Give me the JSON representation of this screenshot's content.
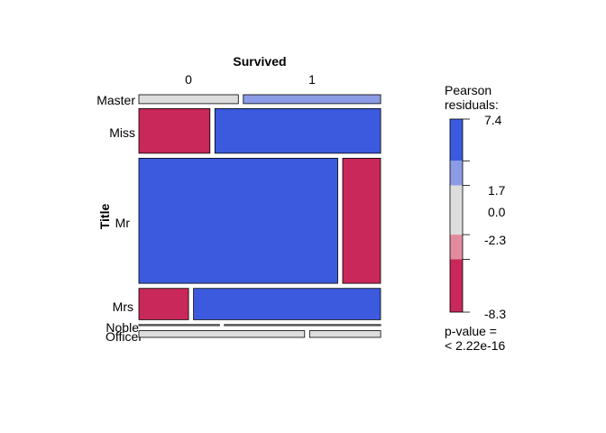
{
  "chart_data": {
    "type": "mosaic",
    "xlabel": "Survived",
    "ylabel": "Title",
    "x_categories": [
      "0",
      "1"
    ],
    "y_categories": [
      "Master",
      "Miss",
      "Mr",
      "Mrs",
      "Noble",
      "Officer"
    ],
    "cells": [
      {
        "row": "Master",
        "survived": "0",
        "prop_width": 0.42,
        "row_height": 0.04,
        "residual": 0.0
      },
      {
        "row": "Master",
        "survived": "1",
        "prop_width": 0.58,
        "row_height": 0.04,
        "residual": 2.0
      },
      {
        "row": "Miss",
        "survived": "0",
        "prop_width": 0.3,
        "row_height": 0.2,
        "residual": -6.0
      },
      {
        "row": "Miss",
        "survived": "1",
        "prop_width": 0.7,
        "row_height": 0.2,
        "residual": 7.4
      },
      {
        "row": "Mr",
        "survived": "0",
        "prop_width": 0.84,
        "row_height": 0.56,
        "residual": 4.5
      },
      {
        "row": "Mr",
        "survived": "1",
        "prop_width": 0.16,
        "row_height": 0.56,
        "residual": -8.3
      },
      {
        "row": "Mrs",
        "survived": "0",
        "prop_width": 0.21,
        "row_height": 0.14,
        "residual": -5.5
      },
      {
        "row": "Mrs",
        "survived": "1",
        "prop_width": 0.79,
        "row_height": 0.14,
        "residual": 6.5
      },
      {
        "row": "Noble",
        "survived": "0",
        "prop_width": 0.34,
        "row_height": 0.005,
        "residual": 0.0
      },
      {
        "row": "Noble",
        "survived": "1",
        "prop_width": 0.66,
        "row_height": 0.005,
        "residual": 0.0
      },
      {
        "row": "Officer",
        "survived": "0",
        "prop_width": 0.7,
        "row_height": 0.03,
        "residual": 0.0
      },
      {
        "row": "Officer",
        "survived": "1",
        "prop_width": 0.3,
        "row_height": 0.03,
        "residual": 0.0
      }
    ],
    "legend": {
      "title_line1": "Pearson",
      "title_line2": "residuals:",
      "max": 7.4,
      "min": -8.3,
      "ticks": [
        "7.4",
        "1.7",
        "0.0",
        "-2.3",
        "-8.3"
      ],
      "tick_values": [
        7.4,
        1.7,
        0.0,
        -2.3,
        -8.3
      ],
      "breaks": [
        2,
        4
      ],
      "placement": "right"
    },
    "pvalue_line1": "p-value =",
    "pvalue_line2": "< 2.22e-16",
    "colors": {
      "strong_pos": "#3b5ade",
      "weak_pos": "#8c9be6",
      "neutral": "#dddddd",
      "weak_neg": "#e28b9c",
      "strong_neg": "#c8285a",
      "border": "#000000"
    }
  }
}
